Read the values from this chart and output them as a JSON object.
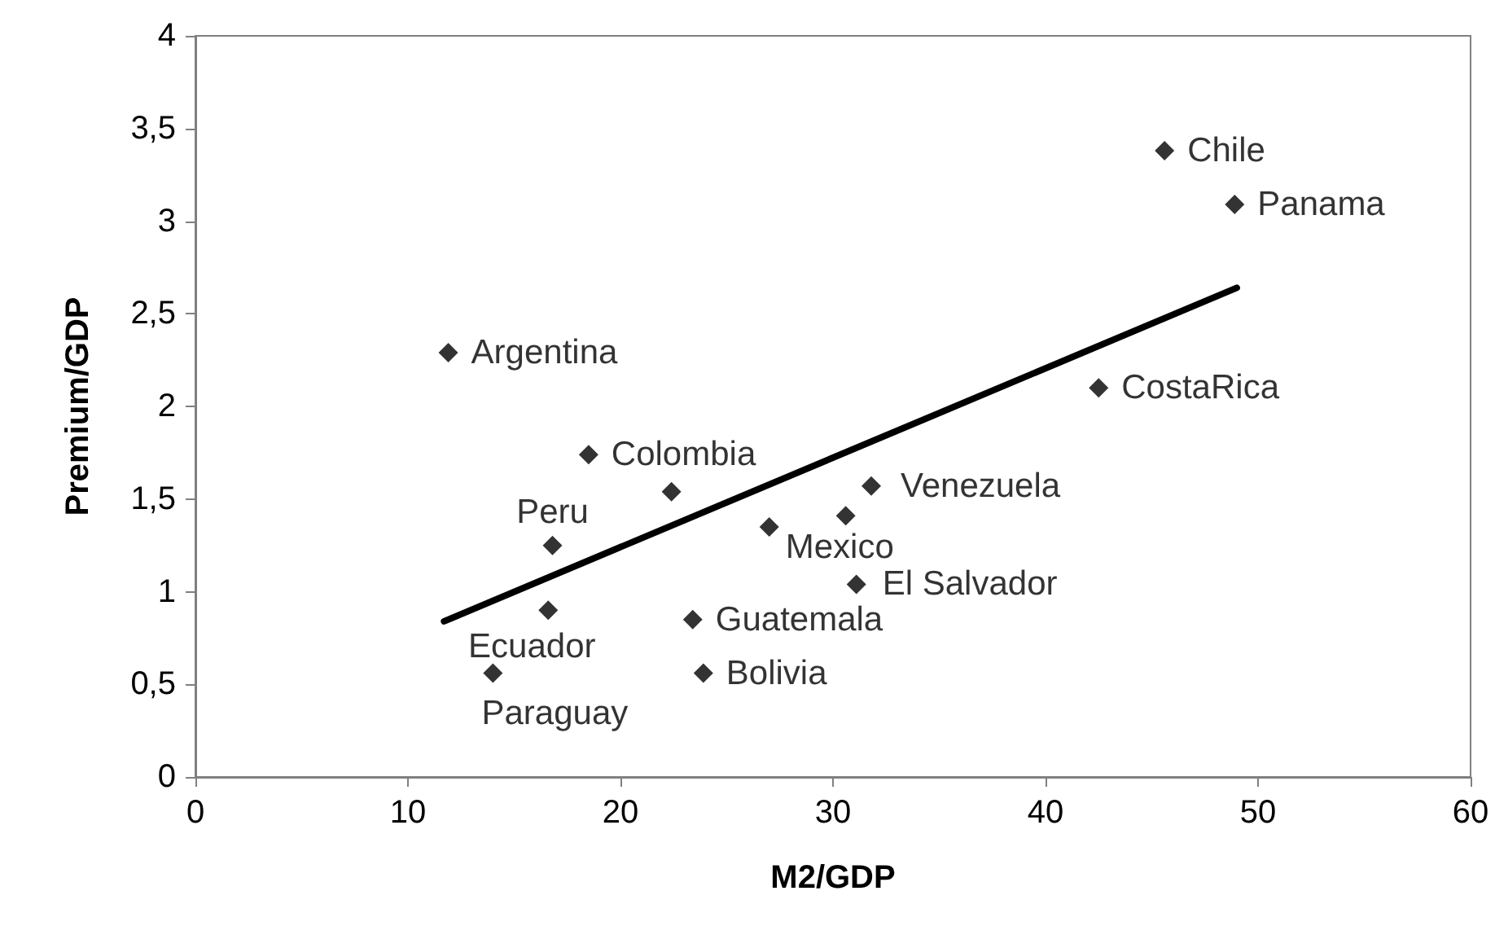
{
  "chart_data": {
    "type": "scatter",
    "xlabel": "M2/GDP",
    "ylabel": "Premium/GDP",
    "grid": false,
    "xlim": [
      0,
      60
    ],
    "xticks": [
      0,
      10,
      20,
      30,
      40,
      50,
      60
    ],
    "ylim": [
      0,
      4
    ],
    "yticks": [
      0,
      {
        "value": 0.5,
        "label": "0,5"
      },
      1,
      {
        "value": 1.5,
        "label": "1,5"
      },
      2,
      {
        "value": 2.5,
        "label": "2,5"
      },
      3,
      {
        "value": 3.5,
        "label": "3,5"
      },
      4
    ],
    "series": [
      {
        "marker": "diamond",
        "color": "#000000",
        "x": [
          11.9,
          45.6,
          48.9,
          42.5,
          18.5,
          16.8,
          31.8,
          27.0,
          31.1,
          23.4,
          16.6,
          23.9,
          14.0,
          22.4,
          30.6
        ],
        "values": [
          2.29,
          3.38,
          3.09,
          2.1,
          1.74,
          1.25,
          1.57,
          1.35,
          1.04,
          0.85,
          0.9,
          0.56,
          0.56,
          1.54,
          1.41
        ]
      },
      {
        "type": "line",
        "marker": "none",
        "color": "#000000",
        "x": [
          11.7,
          49.0
        ],
        "values": [
          0.84,
          2.64
        ]
      }
    ],
    "annotations": [
      {
        "text": "Argentina",
        "x": 11.9,
        "y": 2.29
      },
      {
        "text": "Chile",
        "x": 45.6,
        "y": 3.38
      },
      {
        "text": "Panama",
        "x": 48.9,
        "y": 3.09
      },
      {
        "text": "CostaRica",
        "x": 42.5,
        "y": 2.1
      },
      {
        "text": "Colombia",
        "x": 18.5,
        "y": 1.74
      },
      {
        "text": "Peru",
        "x": 16.8,
        "y": 1.25
      },
      {
        "text": "Venezuela",
        "x": 31.8,
        "y": 1.57
      },
      {
        "text": "Mexico",
        "x": 27.0,
        "y": 1.35
      },
      {
        "text": "El Salvador",
        "x": 31.1,
        "y": 1.04
      },
      {
        "text": "Guatemala",
        "x": 23.4,
        "y": 0.85
      },
      {
        "text": "Ecuador",
        "x": 16.6,
        "y": 0.9
      },
      {
        "text": "Bolivia",
        "x": 23.9,
        "y": 0.56
      },
      {
        "text": "Paraguay",
        "x": 14.0,
        "y": 0.56
      }
    ]
  }
}
